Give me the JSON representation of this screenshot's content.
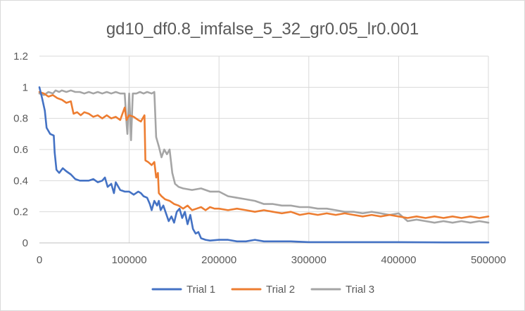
{
  "chart_data": {
    "type": "line",
    "title": "gd10_df0.8_imfalse_5_32_gr0.05_lr0.001",
    "xlabel": "",
    "ylabel": "",
    "xlim": [
      0,
      500000
    ],
    "ylim": [
      0,
      1.2
    ],
    "xticks": [
      "0",
      "100000",
      "200000",
      "300000",
      "400000",
      "500000"
    ],
    "yticks": [
      "0",
      "0.2",
      "0.4",
      "0.6",
      "0.8",
      "1",
      "1.2"
    ],
    "grid": true,
    "legend_position": "bottom",
    "series": [
      {
        "name": "Trial 1",
        "color": "#4472C4",
        "points": [
          [
            0,
            1.0
          ],
          [
            3000,
            0.93
          ],
          [
            6000,
            0.85
          ],
          [
            8000,
            0.74
          ],
          [
            12000,
            0.7
          ],
          [
            16000,
            0.69
          ],
          [
            17000,
            0.58
          ],
          [
            19000,
            0.47
          ],
          [
            22000,
            0.45
          ],
          [
            26000,
            0.48
          ],
          [
            30000,
            0.46
          ],
          [
            35000,
            0.44
          ],
          [
            40000,
            0.41
          ],
          [
            45000,
            0.4
          ],
          [
            50000,
            0.4
          ],
          [
            55000,
            0.4
          ],
          [
            60000,
            0.41
          ],
          [
            65000,
            0.39
          ],
          [
            70000,
            0.4
          ],
          [
            73000,
            0.42
          ],
          [
            76000,
            0.36
          ],
          [
            80000,
            0.38
          ],
          [
            83000,
            0.32
          ],
          [
            85000,
            0.39
          ],
          [
            90000,
            0.34
          ],
          [
            95000,
            0.33
          ],
          [
            100000,
            0.33
          ],
          [
            105000,
            0.31
          ],
          [
            110000,
            0.33
          ],
          [
            113000,
            0.32
          ],
          [
            116000,
            0.3
          ],
          [
            120000,
            0.29
          ],
          [
            123000,
            0.25
          ],
          [
            125000,
            0.21
          ],
          [
            128000,
            0.27
          ],
          [
            131000,
            0.24
          ],
          [
            133000,
            0.27
          ],
          [
            135000,
            0.21
          ],
          [
            138000,
            0.24
          ],
          [
            141000,
            0.19
          ],
          [
            144000,
            0.14
          ],
          [
            147000,
            0.17
          ],
          [
            150000,
            0.13
          ],
          [
            153000,
            0.2
          ],
          [
            156000,
            0.22
          ],
          [
            159000,
            0.16
          ],
          [
            162000,
            0.2
          ],
          [
            165000,
            0.12
          ],
          [
            168000,
            0.18
          ],
          [
            171000,
            0.09
          ],
          [
            174000,
            0.06
          ],
          [
            177000,
            0.07
          ],
          [
            180000,
            0.03
          ],
          [
            185000,
            0.02
          ],
          [
            190000,
            0.015
          ],
          [
            200000,
            0.02
          ],
          [
            210000,
            0.02
          ],
          [
            220000,
            0.01
          ],
          [
            230000,
            0.01
          ],
          [
            240000,
            0.02
          ],
          [
            250000,
            0.01
          ],
          [
            260000,
            0.01
          ],
          [
            280000,
            0.01
          ],
          [
            300000,
            0.005
          ],
          [
            330000,
            0.005
          ],
          [
            360000,
            0.005
          ],
          [
            400000,
            0.005
          ],
          [
            450000,
            0.003
          ],
          [
            500000,
            0.003
          ]
        ]
      },
      {
        "name": "Trial 2",
        "color": "#ED7D31",
        "points": [
          [
            0,
            0.97
          ],
          [
            5000,
            0.96
          ],
          [
            10000,
            0.94
          ],
          [
            15000,
            0.95
          ],
          [
            20000,
            0.93
          ],
          [
            25000,
            0.92
          ],
          [
            30000,
            0.9
          ],
          [
            35000,
            0.91
          ],
          [
            38000,
            0.83
          ],
          [
            42000,
            0.84
          ],
          [
            46000,
            0.82
          ],
          [
            50000,
            0.84
          ],
          [
            55000,
            0.83
          ],
          [
            60000,
            0.81
          ],
          [
            65000,
            0.82
          ],
          [
            70000,
            0.8
          ],
          [
            75000,
            0.82
          ],
          [
            80000,
            0.8
          ],
          [
            85000,
            0.81
          ],
          [
            90000,
            0.79
          ],
          [
            95000,
            0.87
          ],
          [
            97000,
            0.79
          ],
          [
            100000,
            0.82
          ],
          [
            105000,
            0.81
          ],
          [
            110000,
            0.79
          ],
          [
            113000,
            0.78
          ],
          [
            115000,
            0.8
          ],
          [
            117000,
            0.82
          ],
          [
            118000,
            0.53
          ],
          [
            121000,
            0.52
          ],
          [
            125000,
            0.5
          ],
          [
            128000,
            0.52
          ],
          [
            130000,
            0.42
          ],
          [
            132000,
            0.45
          ],
          [
            133000,
            0.32
          ],
          [
            136000,
            0.3
          ],
          [
            140000,
            0.28
          ],
          [
            145000,
            0.27
          ],
          [
            150000,
            0.25
          ],
          [
            155000,
            0.24
          ],
          [
            160000,
            0.22
          ],
          [
            165000,
            0.24
          ],
          [
            170000,
            0.21
          ],
          [
            175000,
            0.22
          ],
          [
            180000,
            0.23
          ],
          [
            185000,
            0.21
          ],
          [
            190000,
            0.23
          ],
          [
            195000,
            0.22
          ],
          [
            200000,
            0.22
          ],
          [
            210000,
            0.21
          ],
          [
            220000,
            0.22
          ],
          [
            230000,
            0.21
          ],
          [
            240000,
            0.2
          ],
          [
            250000,
            0.21
          ],
          [
            260000,
            0.2
          ],
          [
            270000,
            0.19
          ],
          [
            280000,
            0.2
          ],
          [
            290000,
            0.18
          ],
          [
            300000,
            0.19
          ],
          [
            310000,
            0.18
          ],
          [
            320000,
            0.19
          ],
          [
            330000,
            0.18
          ],
          [
            340000,
            0.19
          ],
          [
            350000,
            0.18
          ],
          [
            360000,
            0.17
          ],
          [
            370000,
            0.18
          ],
          [
            380000,
            0.17
          ],
          [
            390000,
            0.18
          ],
          [
            400000,
            0.17
          ],
          [
            410000,
            0.16
          ],
          [
            420000,
            0.17
          ],
          [
            430000,
            0.16
          ],
          [
            440000,
            0.17
          ],
          [
            450000,
            0.16
          ],
          [
            460000,
            0.17
          ],
          [
            470000,
            0.16
          ],
          [
            480000,
            0.17
          ],
          [
            490000,
            0.16
          ],
          [
            500000,
            0.17
          ]
        ]
      },
      {
        "name": "Trial 3",
        "color": "#A5A5A5",
        "points": [
          [
            0,
            0.96
          ],
          [
            5000,
            0.95
          ],
          [
            10000,
            0.97
          ],
          [
            15000,
            0.96
          ],
          [
            18000,
            0.98
          ],
          [
            22000,
            0.97
          ],
          [
            25000,
            0.98
          ],
          [
            30000,
            0.97
          ],
          [
            35000,
            0.98
          ],
          [
            40000,
            0.97
          ],
          [
            45000,
            0.97
          ],
          [
            50000,
            0.96
          ],
          [
            55000,
            0.97
          ],
          [
            60000,
            0.96
          ],
          [
            65000,
            0.97
          ],
          [
            70000,
            0.96
          ],
          [
            75000,
            0.97
          ],
          [
            80000,
            0.96
          ],
          [
            85000,
            0.97
          ],
          [
            90000,
            0.96
          ],
          [
            95000,
            0.96
          ],
          [
            97000,
            0.77
          ],
          [
            98000,
            0.7
          ],
          [
            100000,
            0.96
          ],
          [
            102000,
            0.66
          ],
          [
            104000,
            0.96
          ],
          [
            108000,
            0.96
          ],
          [
            112000,
            0.97
          ],
          [
            116000,
            0.96
          ],
          [
            120000,
            0.97
          ],
          [
            125000,
            0.96
          ],
          [
            128000,
            0.97
          ],
          [
            130000,
            0.68
          ],
          [
            133000,
            0.62
          ],
          [
            136000,
            0.55
          ],
          [
            139000,
            0.6
          ],
          [
            142000,
            0.57
          ],
          [
            145000,
            0.6
          ],
          [
            148000,
            0.45
          ],
          [
            151000,
            0.38
          ],
          [
            155000,
            0.36
          ],
          [
            160000,
            0.35
          ],
          [
            170000,
            0.34
          ],
          [
            180000,
            0.35
          ],
          [
            190000,
            0.33
          ],
          [
            200000,
            0.33
          ],
          [
            210000,
            0.3
          ],
          [
            220000,
            0.29
          ],
          [
            230000,
            0.28
          ],
          [
            240000,
            0.27
          ],
          [
            250000,
            0.25
          ],
          [
            260000,
            0.25
          ],
          [
            270000,
            0.24
          ],
          [
            280000,
            0.24
          ],
          [
            290000,
            0.23
          ],
          [
            300000,
            0.23
          ],
          [
            310000,
            0.22
          ],
          [
            320000,
            0.22
          ],
          [
            330000,
            0.21
          ],
          [
            340000,
            0.2
          ],
          [
            350000,
            0.2
          ],
          [
            360000,
            0.19
          ],
          [
            370000,
            0.2
          ],
          [
            380000,
            0.19
          ],
          [
            390000,
            0.18
          ],
          [
            400000,
            0.19
          ],
          [
            410000,
            0.14
          ],
          [
            420000,
            0.15
          ],
          [
            430000,
            0.14
          ],
          [
            440000,
            0.13
          ],
          [
            450000,
            0.14
          ],
          [
            460000,
            0.13
          ],
          [
            470000,
            0.14
          ],
          [
            480000,
            0.13
          ],
          [
            490000,
            0.14
          ],
          [
            500000,
            0.13
          ]
        ]
      }
    ]
  }
}
